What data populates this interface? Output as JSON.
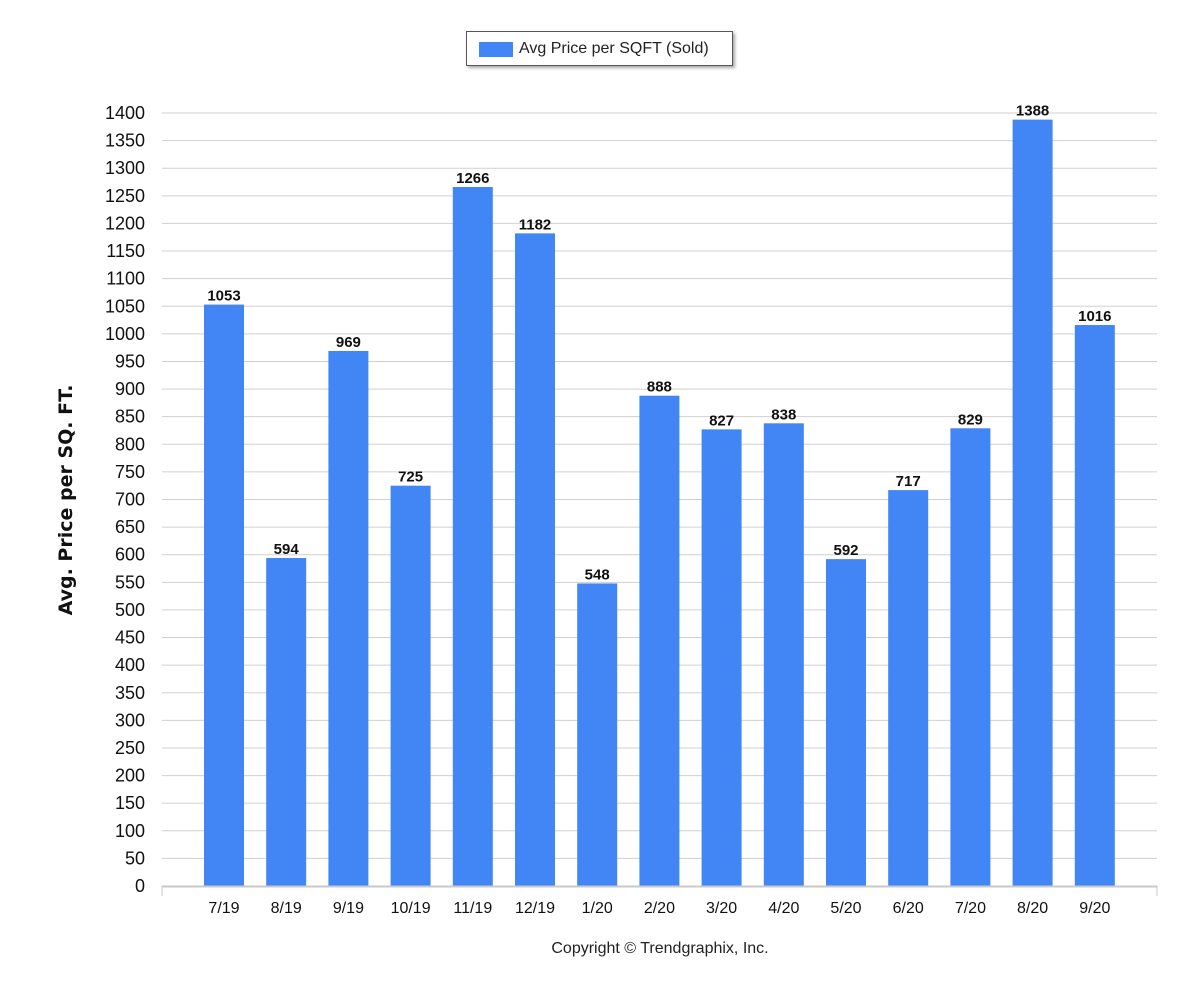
{
  "colors": {
    "bar": "#4285f4",
    "grid": "#d0d0d0",
    "axis": "#c8c8c8"
  },
  "chart_data": {
    "type": "bar",
    "categories": [
      "7/19",
      "8/19",
      "9/19",
      "10/19",
      "11/19",
      "12/19",
      "1/20",
      "2/20",
      "3/20",
      "4/20",
      "5/20",
      "6/20",
      "7/20",
      "8/20",
      "9/20"
    ],
    "series": [
      {
        "name": "Avg Price per SQFT (Sold)",
        "values": [
          1053,
          594,
          969,
          725,
          1266,
          1182,
          548,
          888,
          827,
          838,
          592,
          717,
          829,
          1388,
          1016
        ]
      }
    ],
    "ylabel": "Avg. Price per SQ. FT.",
    "ylim": [
      0,
      1400
    ],
    "ytick_step": 50,
    "grid": true,
    "legend_position": "top-center",
    "data_labels": true
  },
  "footer": {
    "copyright": "Copyright © Trendgraphix, Inc."
  }
}
